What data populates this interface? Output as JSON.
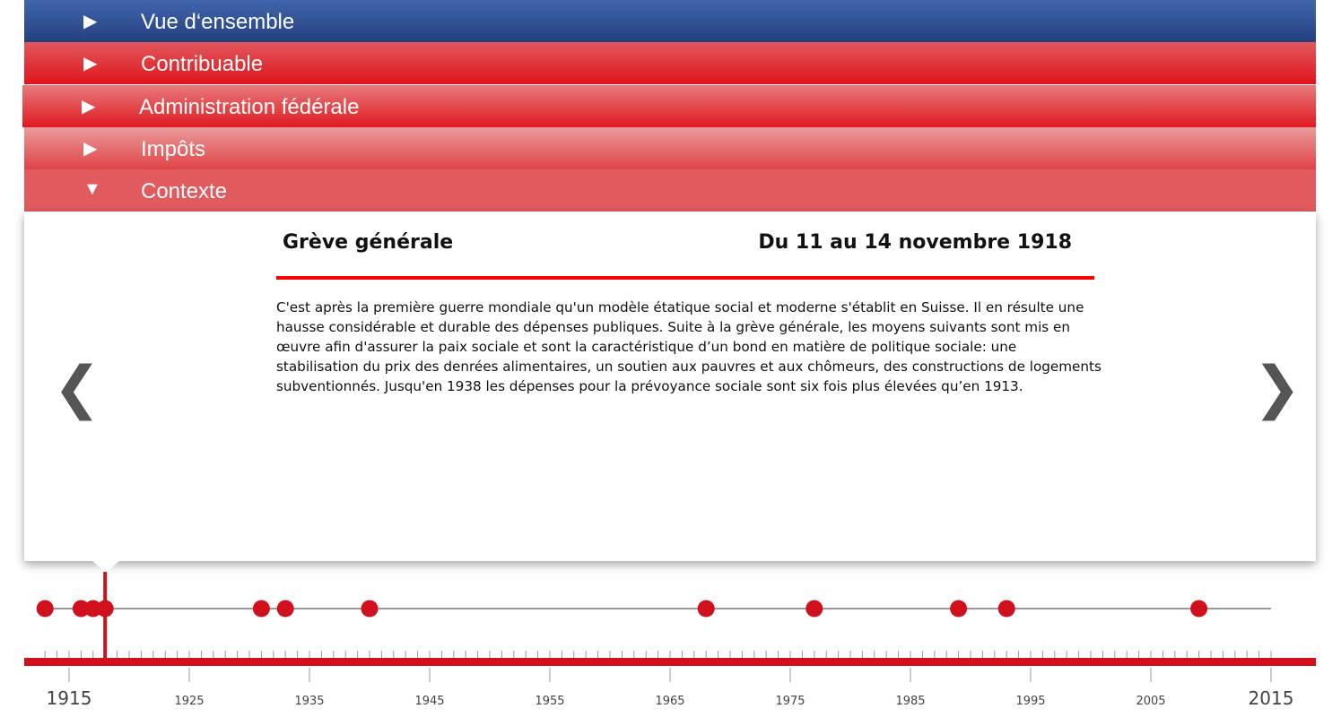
{
  "menu": [
    {
      "label": "Vue d‘ensemble",
      "icon": "triangle-right-icon",
      "expanded": false
    },
    {
      "label": "Contribuable",
      "icon": "triangle-right-icon",
      "expanded": false
    },
    {
      "label": "Administration fédérale",
      "icon": "triangle-right-icon",
      "expanded": false
    },
    {
      "label": "Impôts",
      "icon": "triangle-right-icon",
      "expanded": false
    },
    {
      "label": "Contexte",
      "icon": "triangle-down-icon",
      "expanded": true
    }
  ],
  "event": {
    "title": "Grève générale",
    "date": "Du 11 au 14 novembre 1918",
    "text": "C'est après la première guerre mondiale qu'un modèle étatique social et moderne s'établit en Suisse. Il en résulte une hausse considérable et durable des dépenses publiques. Suite à la grève générale, les moyens suivants sont mis en œuvre afin d'assurer la paix sociale et sont la caractéristique d’un bond en matière de politique sociale: une stabilisation du prix des denrées alimentaires, un soutien aux pauvres et aux chômeurs, des constructions de logements subventionnés. Jusqu'en 1938 les dépenses pour la prévoyance sociale sont six fois plus élevées qu’en 1913."
  },
  "nav": {
    "prev": "❮",
    "next": "❯"
  },
  "timeline": {
    "range": [
      1913,
      2015
    ],
    "selected_year": 1918,
    "event_years": [
      1913,
      1916,
      1917,
      1918,
      1931,
      1933,
      1940,
      1968,
      1977,
      1989,
      1993,
      2009
    ],
    "major_labels": [
      "1915",
      "1925",
      "1935",
      "1945",
      "1955",
      "1965",
      "1975",
      "1985",
      "1995",
      "2005",
      "2015"
    ],
    "accent": "#d0101c"
  }
}
